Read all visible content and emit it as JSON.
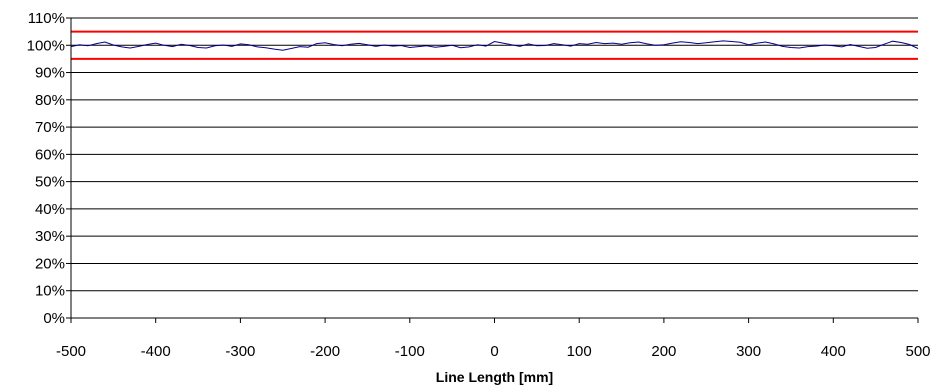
{
  "chart_data": {
    "type": "line",
    "title": "",
    "xlabel": "Line Length [mm]",
    "ylabel": "",
    "xlim": [
      -500,
      500
    ],
    "ylim": [
      0,
      110
    ],
    "x_ticks": [
      -500,
      -400,
      -300,
      -200,
      -100,
      0,
      100,
      200,
      300,
      400,
      500
    ],
    "y_ticks": [
      0,
      10,
      20,
      30,
      40,
      50,
      60,
      70,
      80,
      90,
      100,
      110
    ],
    "y_tick_labels": [
      "0%",
      "10%",
      "20%",
      "30%",
      "40%",
      "50%",
      "60%",
      "70%",
      "80%",
      "90%",
      "100%",
      "110%"
    ],
    "grid": "horizontal",
    "legend": "none",
    "limit_lines": [
      {
        "value": 105,
        "color": "#ff0000"
      },
      {
        "value": 95,
        "color": "#ff0000"
      }
    ],
    "series": [
      {
        "color": "#00008b",
        "x": [
          -500,
          -490,
          -480,
          -470,
          -460,
          -450,
          -440,
          -430,
          -420,
          -410,
          -400,
          -390,
          -380,
          -370,
          -360,
          -350,
          -340,
          -330,
          -320,
          -310,
          -300,
          -290,
          -280,
          -270,
          -260,
          -250,
          -240,
          -230,
          -220,
          -210,
          -200,
          -190,
          -180,
          -170,
          -160,
          -150,
          -140,
          -130,
          -120,
          -110,
          -100,
          -90,
          -80,
          -70,
          -60,
          -50,
          -40,
          -30,
          -20,
          -10,
          0,
          10,
          20,
          30,
          40,
          50,
          60,
          70,
          80,
          90,
          100,
          110,
          120,
          130,
          140,
          150,
          160,
          170,
          180,
          190,
          200,
          210,
          220,
          230,
          240,
          250,
          260,
          270,
          280,
          290,
          300,
          310,
          320,
          330,
          340,
          350,
          360,
          370,
          380,
          390,
          400,
          410,
          420,
          430,
          440,
          450,
          460,
          470,
          480,
          490,
          500
        ],
        "y": [
          99.5,
          100.2,
          99.8,
          100.6,
          101.2,
          100.1,
          99.4,
          99.0,
          99.6,
          100.3,
          100.8,
          100.0,
          99.5,
          100.4,
          99.9,
          99.2,
          99.0,
          99.8,
          100.1,
          99.6,
          100.5,
          100.2,
          99.4,
          99.1,
          98.6,
          98.2,
          98.8,
          99.5,
          99.3,
          100.6,
          100.9,
          100.3,
          99.8,
          100.4,
          100.7,
          100.2,
          99.6,
          100.1,
          99.7,
          99.9,
          99.2,
          99.5,
          99.8,
          99.3,
          99.6,
          100.0,
          99.1,
          99.4,
          100.2,
          99.7,
          101.4,
          100.8,
          100.2,
          99.6,
          100.5,
          99.8,
          99.9,
          100.6,
          100.2,
          99.7,
          100.6,
          100.4,
          101.0,
          100.6,
          100.8,
          100.4,
          100.9,
          101.2,
          100.5,
          100.0,
          100.2,
          100.8,
          101.3,
          101.0,
          100.6,
          100.9,
          101.3,
          101.6,
          101.4,
          101.1,
          100.2,
          100.8,
          101.2,
          100.5,
          99.6,
          99.2,
          99.0,
          99.5,
          99.7,
          100.1,
          99.8,
          99.4,
          100.3,
          99.6,
          98.9,
          99.2,
          100.4,
          101.5,
          101.0,
          100.3,
          98.8
        ]
      }
    ]
  }
}
